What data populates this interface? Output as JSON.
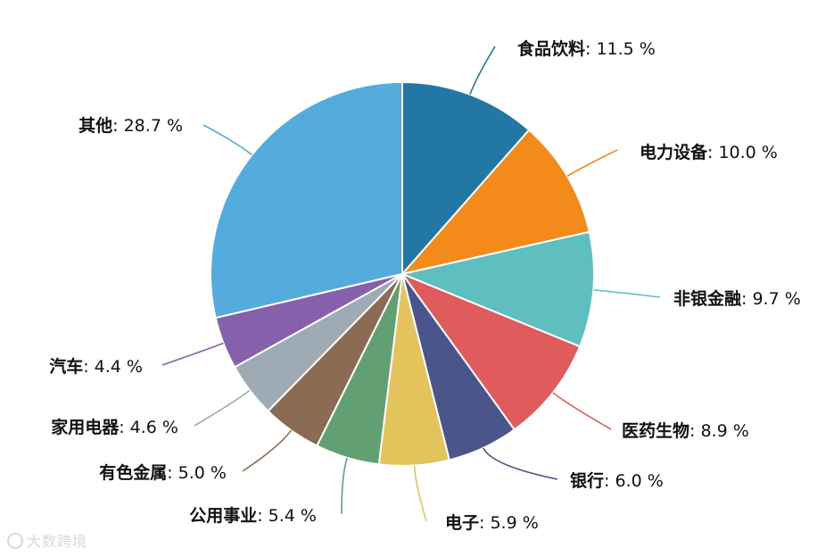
{
  "chart_data": {
    "type": "pie",
    "slices": [
      {
        "name": "食品饮料",
        "value": 11.5,
        "label": "11.5 %",
        "color": "#2277a4"
      },
      {
        "name": "电力设备",
        "value": 10.0,
        "label": "10.0 %",
        "color": "#f38a1a"
      },
      {
        "name": "非银金融",
        "value": 9.7,
        "label": "9.7 %",
        "color": "#5fbebf"
      },
      {
        "name": "医药生物",
        "value": 8.9,
        "label": "8.9 %",
        "color": "#e05c5c"
      },
      {
        "name": "银行",
        "value": 6.0,
        "label": "6.0 %",
        "color": "#4a558c"
      },
      {
        "name": "电子",
        "value": 5.9,
        "label": "5.9 %",
        "color": "#e3c45c"
      },
      {
        "name": "公用事业",
        "value": 5.4,
        "label": "5.4 %",
        "color": "#62a073"
      },
      {
        "name": "有色金属",
        "value": 5.0,
        "label": "5.0 %",
        "color": "#8b6c52"
      },
      {
        "name": "家用电器",
        "value": 4.6,
        "label": "4.6 %",
        "color": "#9eaab4"
      },
      {
        "name": "汽车",
        "value": 4.4,
        "label": "4.4 %",
        "color": "#8760ab"
      },
      {
        "name": "其他",
        "value": 28.7,
        "label": "28.7 %",
        "color": "#53acdc"
      }
    ]
  },
  "watermark": {
    "text": "大数跨境",
    "icon": "logo-icon"
  }
}
